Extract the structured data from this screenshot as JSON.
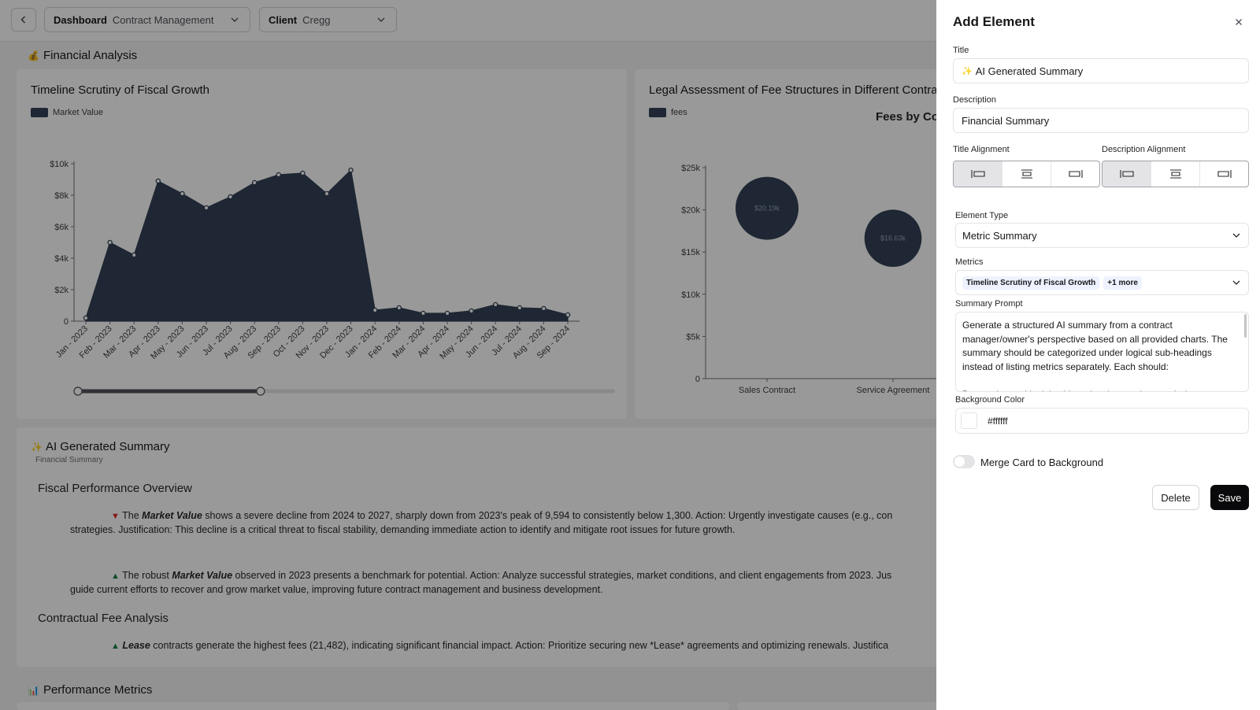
{
  "topbar": {
    "dashboard_label": "Dashboard",
    "dashboard_value": "Contract Management",
    "client_label": "Client",
    "client_value": "Cregg"
  },
  "sections": {
    "financial": {
      "icon": "💰",
      "title": "Financial Analysis"
    },
    "performance": {
      "icon": "📊",
      "title": "Performance Metrics"
    }
  },
  "charts": [
    {
      "title": "Timeline Scrutiny of Fiscal Growth",
      "legend": "Market Value",
      "chart_data": {
        "type": "area",
        "title": "",
        "xlabel": "",
        "ylabel": "",
        "ylim": [
          0,
          10000
        ],
        "y_ticks": [
          "0",
          "$2k",
          "$4k",
          "$6k",
          "$8k",
          "$10k"
        ],
        "categories": [
          "Jan - 2023",
          "Feb - 2023",
          "Mar - 2023",
          "Apr - 2023",
          "May - 2023",
          "Jun - 2023",
          "Jul - 2023",
          "Aug - 2023",
          "Sep - 2023",
          "Oct - 2023",
          "Nov - 2023",
          "Dec - 2023",
          "Jan - 2024",
          "Feb - 2024",
          "Mar - 2024",
          "Apr - 2024",
          "May - 2024",
          "Jun - 2024",
          "Jul - 2024",
          "Aug - 2024",
          "Sep - 2024"
        ],
        "series": [
          {
            "name": "Market Value",
            "values": [
              200,
              5000,
              4200,
              8900,
              8100,
              7200,
              7900,
              8800,
              9300,
              9400,
              8100,
              9594,
              700,
              850,
              500,
              500,
              650,
              1050,
              850,
              800,
              400
            ]
          }
        ],
        "color": "#334155",
        "grid": false,
        "legend": "top-left",
        "range_slider": {
          "start_fraction": 0.0,
          "end_fraction": 0.34
        }
      }
    },
    {
      "title": "Legal Assessment of Fee Structures in Different Contract Types",
      "legend": "fees",
      "chart_data": {
        "type": "scatter",
        "title": "Fees by Contract Type",
        "xlabel": "",
        "ylabel": "",
        "ylim": [
          0,
          25000
        ],
        "y_ticks": [
          "0",
          "$5k",
          "$10k",
          "$15k",
          "$20k",
          "$25k"
        ],
        "categories": [
          "Sales Contract",
          "Service Agreement"
        ],
        "series": [
          {
            "name": "fees",
            "values": [
              20190,
              16630
            ],
            "labels": [
              "$20.19k",
              "$16.63k"
            ]
          }
        ],
        "color": "#334155",
        "grid": false,
        "legend": "top-left"
      }
    }
  ],
  "summary": {
    "icon": "✨",
    "title": "AI Generated Summary",
    "subtitle": "Financial Summary",
    "heading1": "Fiscal Performance Overview",
    "p1_pre": "The ",
    "p1_em": "Market Value",
    "p1_line1": " shows a severe decline from 2024 to 2027, sharply down from 2023's peak of 9,594 to consistently below 1,300. Action: Urgently investigate causes (e.g., con",
    "p1_line2": "strategies. Justification: This decline is a critical threat to fiscal stability, demanding immediate action to identify and mitigate root issues for future growth.",
    "p2_pre": "The robust ",
    "p2_em": "Market Value",
    "p2_line1": " observed in 2023 presents a benchmark for potential. Action: Analyze successful strategies, market conditions, and client engagements from 2023. Jus",
    "p2_line2": "guide current efforts to recover and grow market value, improving future contract management and business development.",
    "heading2": "Contractual Fee Analysis",
    "p3_em": "Lease",
    "p3_line1": " contracts generate the highest fees (21,482), indicating significant financial impact. Action: Prioritize securing new *Lease* agreements and optimizing renewals. Justifica"
  },
  "panel": {
    "title": "Add Element",
    "title_label": "Title",
    "title_icon": "✨",
    "title_value": "AI Generated Summary",
    "description_label": "Description",
    "description_value": "Financial Summary",
    "title_alignment_label": "Title Alignment",
    "description_alignment_label": "Description Alignment",
    "element_type_label": "Element Type",
    "element_type_value": "Metric Summary",
    "metrics_label": "Metrics",
    "metrics_chip": "Timeline Scrutiny of Fiscal Growth",
    "metrics_more": "+1 more",
    "summary_prompt_label": "Summary Prompt",
    "summary_prompt_value": "Generate a structured AI summary from a contract manager/owner's perspective based on all provided charts. The summary should be categorized under logical sub-headings instead of listing metrics separately. Each should:\n\nBe concise and insight-driven (not just stating metrics)",
    "background_color_label": "Background Color",
    "background_color_value": "#ffffff",
    "merge_label": "Merge Card to Background",
    "merge_enabled": false,
    "delete_label": "Delete",
    "save_label": "Save"
  }
}
